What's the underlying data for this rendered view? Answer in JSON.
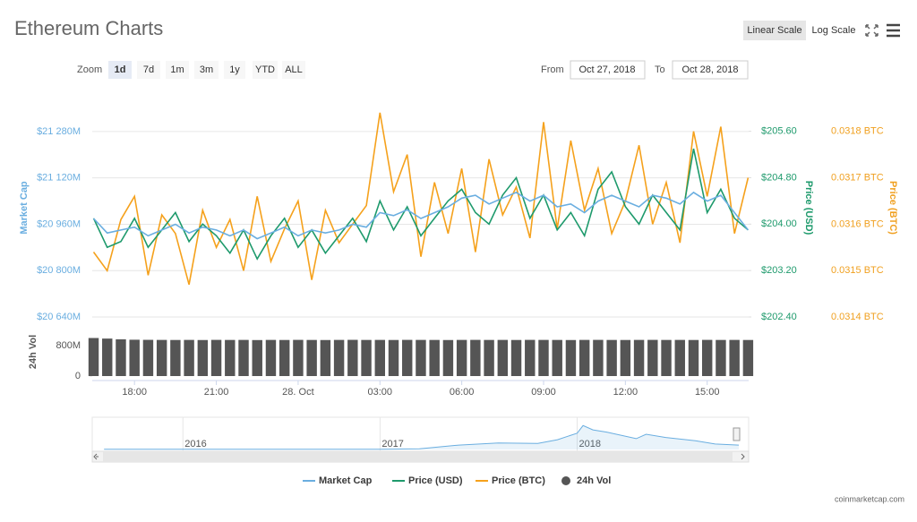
{
  "chart_data": {
    "type": "line",
    "title": "Ethereum Charts",
    "scale_buttons": [
      "Linear Scale",
      "Log Scale"
    ],
    "scale_selected": 0,
    "log_scale": false,
    "grid": true,
    "zoom": {
      "label": "Zoom",
      "options": [
        "1d",
        "7d",
        "1m",
        "3m",
        "1y",
        "YTD",
        "ALL"
      ],
      "selected": 0
    },
    "from_label": "From",
    "from": "Oct 27, 2018",
    "to_label": "To",
    "to": "Oct 28, 2018",
    "xlim": [
      16.45,
      40.52
    ],
    "xticks": [
      {
        "value": 18,
        "label": "18:00"
      },
      {
        "value": 21,
        "label": "21:00"
      },
      {
        "value": 24,
        "label": "28. Oct"
      },
      {
        "value": 27,
        "label": "03:00"
      },
      {
        "value": 30,
        "label": "06:00"
      },
      {
        "value": 33,
        "label": "09:00"
      },
      {
        "value": 36,
        "label": "12:00"
      },
      {
        "value": 39,
        "label": "15:00"
      }
    ],
    "x": [
      16.5,
      17,
      17.5,
      18,
      18.5,
      19,
      19.5,
      20,
      20.5,
      21,
      21.5,
      22,
      22.5,
      23,
      23.5,
      24,
      24.5,
      25,
      25.5,
      26,
      26.5,
      27,
      27.5,
      28,
      28.5,
      29,
      29.5,
      30,
      30.5,
      31,
      31.5,
      32,
      32.5,
      33,
      33.5,
      34,
      34.5,
      35,
      35.5,
      36,
      36.5,
      37,
      37.5,
      38,
      38.5,
      39,
      39.5,
      40,
      40.5
    ],
    "y_title": "Market Cap",
    "ylim": [
      20606,
      21425
    ],
    "yticks": [
      {
        "value": 20640,
        "label": "$20 640M"
      },
      {
        "value": 20800,
        "label": "$20 800M"
      },
      {
        "value": 20960,
        "label": "$20 960M"
      },
      {
        "value": 21120,
        "label": "$21 120M"
      },
      {
        "value": 21280,
        "label": "$21 280M"
      }
    ],
    "y2_title": "Price (USD)",
    "y2lim": [
      202.23,
      206.32
    ],
    "y2ticks": [
      {
        "value": 202.4,
        "label": "$202.40"
      },
      {
        "value": 203.2,
        "label": "$203.20"
      },
      {
        "value": 204.0,
        "label": "$204.00"
      },
      {
        "value": 204.8,
        "label": "$204.80"
      },
      {
        "value": 205.6,
        "label": "$205.60"
      }
    ],
    "y3_title": "Price (BTC)",
    "y3lim": [
      0.031379,
      0.03189
    ],
    "y3ticks": [
      {
        "value": 0.0314,
        "label": "0.0314 BTC"
      },
      {
        "value": 0.0315,
        "label": "0.0315 BTC"
      },
      {
        "value": 0.0316,
        "label": "0.0316 BTC"
      },
      {
        "value": 0.0317,
        "label": "0.0317 BTC"
      },
      {
        "value": 0.0318,
        "label": "0.0318 BTC"
      }
    ],
    "series": [
      {
        "name": "Market Cap",
        "color": "#6aaee0",
        "axis": "y",
        "values": [
          20980,
          20930,
          20940,
          20950,
          20920,
          20940,
          20960,
          20930,
          20950,
          20940,
          20920,
          20940,
          20910,
          20930,
          20950,
          20920,
          20940,
          20930,
          20940,
          20960,
          20950,
          21000,
          20990,
          21010,
          20980,
          21000,
          21020,
          21050,
          21060,
          21030,
          21050,
          21070,
          21040,
          21060,
          21020,
          21030,
          21000,
          21040,
          21060,
          21040,
          21020,
          21060,
          21050,
          21030,
          21070,
          21040,
          21060,
          21000,
          20940
        ]
      },
      {
        "name": "Price (USD)",
        "color": "#1e9a6c",
        "axis": "y2",
        "values": [
          204.1,
          203.6,
          203.7,
          204.1,
          203.6,
          203.9,
          204.2,
          203.7,
          204.0,
          203.8,
          203.5,
          203.9,
          203.4,
          203.8,
          204.1,
          203.6,
          203.9,
          203.5,
          203.8,
          204.1,
          203.7,
          204.4,
          203.9,
          204.3,
          203.8,
          204.1,
          204.4,
          204.6,
          204.2,
          204.0,
          204.5,
          204.8,
          204.1,
          204.5,
          203.9,
          204.2,
          203.8,
          204.6,
          204.9,
          204.3,
          204.0,
          204.5,
          204.2,
          203.9,
          205.3,
          204.2,
          204.6,
          204.1,
          203.9
        ]
      },
      {
        "name": "Price (BTC)",
        "color": "#f5a11c",
        "axis": "y3",
        "values": [
          0.03154,
          0.0315,
          0.03161,
          0.03166,
          0.03149,
          0.03162,
          0.03158,
          0.03147,
          0.03163,
          0.03155,
          0.03161,
          0.0315,
          0.03166,
          0.03152,
          0.03159,
          0.03165,
          0.03148,
          0.03163,
          0.03156,
          0.0316,
          0.03164,
          0.03184,
          0.03167,
          0.03175,
          0.03153,
          0.03169,
          0.03158,
          0.03172,
          0.03154,
          0.03174,
          0.03162,
          0.03168,
          0.03157,
          0.03182,
          0.03159,
          0.03178,
          0.03163,
          0.03172,
          0.03158,
          0.03165,
          0.03177,
          0.0316,
          0.03169,
          0.03156,
          0.0318,
          0.03166,
          0.03181,
          0.03158,
          0.0317
        ]
      }
    ],
    "volume": {
      "name": "24h Vol",
      "title": "24h Vol",
      "color": "#555555",
      "ylim": [
        0,
        1059
      ],
      "yticks": [
        0,
        {
          "value": 800,
          "label": "800M"
        }
      ],
      "values": [
        1000,
        985,
        965,
        955,
        952,
        950,
        948,
        950,
        947,
        951,
        949,
        950,
        946,
        950,
        948,
        951,
        949,
        947,
        950,
        952,
        949,
        950,
        948,
        951,
        950,
        949,
        947,
        950,
        951,
        949,
        950,
        948,
        951,
        950,
        949,
        947,
        950,
        951,
        949,
        948,
        950,
        951,
        949,
        950,
        948,
        951,
        949,
        950,
        948
      ]
    },
    "navigator": {
      "xlim": [
        2015.54,
        2018.87
      ],
      "ylim": [
        0,
        140
      ],
      "xticks": [
        {
          "value": 2016,
          "label": "2016"
        },
        {
          "value": 2017,
          "label": "2017"
        },
        {
          "value": 2018,
          "label": "2018"
        }
      ],
      "x": [
        2015.6,
        2016.0,
        2016.5,
        2017.0,
        2017.2,
        2017.4,
        2017.6,
        2017.8,
        2017.9,
        2018.0,
        2018.03,
        2018.08,
        2018.15,
        2018.3,
        2018.35,
        2018.45,
        2018.6,
        2018.7,
        2018.82
      ],
      "values": [
        1,
        1,
        1,
        1,
        3,
        20,
        30,
        28,
        45,
        75,
        110,
        90,
        80,
        50,
        70,
        55,
        40,
        25,
        20
      ],
      "color": "#6aaee0"
    },
    "credit": "coinmarketcap.com"
  }
}
